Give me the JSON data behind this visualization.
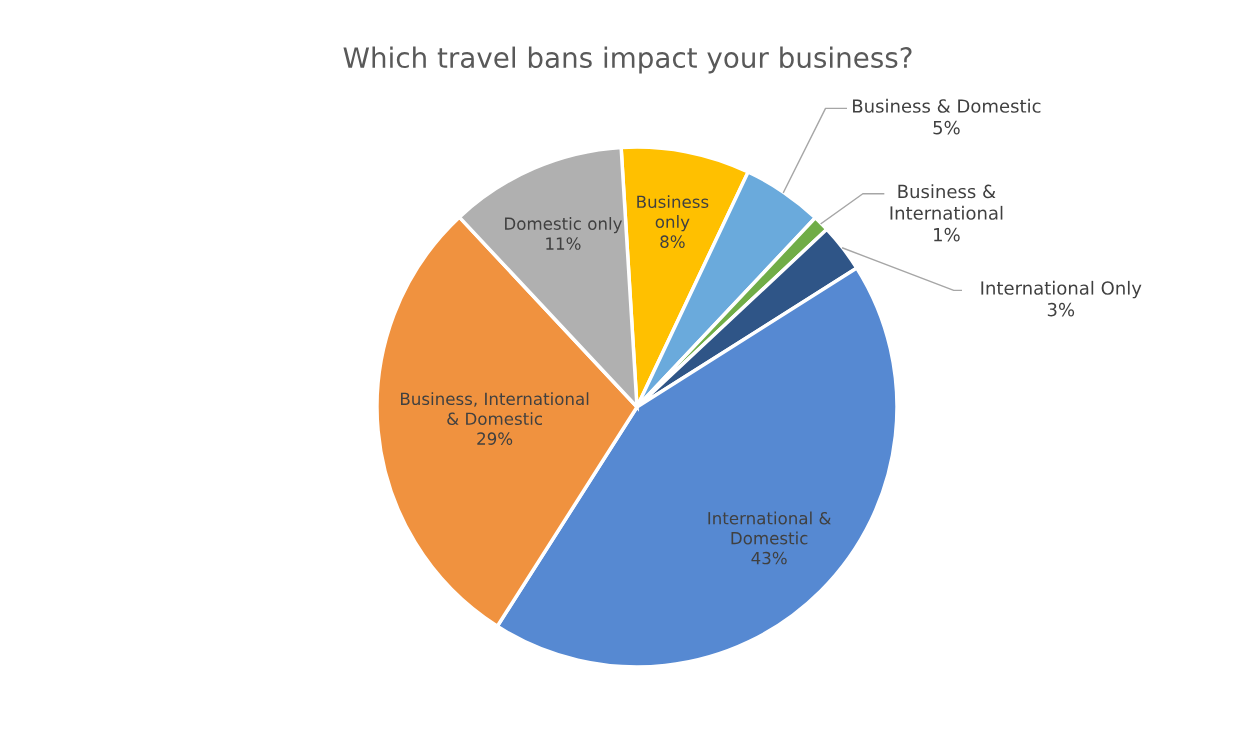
{
  "chart_data": {
    "type": "pie",
    "title": "Which travel bans impact your business?",
    "categories": [
      "Business\nonly",
      "Business & Domestic",
      "Business &\nInternational",
      "International Only",
      "International &\nDomestic",
      "Business, International\n& Domestic",
      "Domestic only"
    ],
    "values": [
      8,
      5,
      1,
      3,
      43,
      29,
      11
    ],
    "colors": [
      "#ffc000",
      "#6aaadc",
      "#70ad47",
      "#2f5587",
      "#5689d2",
      "#f0923f",
      "#b0b0b0"
    ],
    "value_labels": [
      "8%",
      "5%",
      "1%",
      "3%",
      "43%",
      "29%",
      "11%"
    ]
  }
}
